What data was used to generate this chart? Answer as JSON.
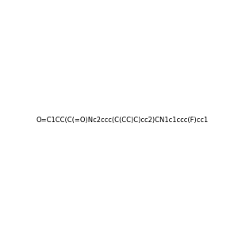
{
  "smiles": "O=C1CC(C(=O)Nc2ccc(C(CC)C)cc2)CN1c1ccc(F)cc1",
  "image_size": 300,
  "background_color": "#e8e8e8",
  "title": ""
}
